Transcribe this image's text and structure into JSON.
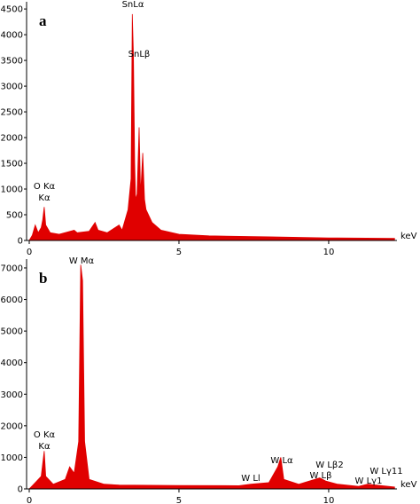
{
  "chart_data": [
    {
      "type": "area",
      "panel_label": "a",
      "x_label": "keV",
      "color": "#e00000",
      "xlim": [
        0,
        12.28
      ],
      "ylim": [
        0,
        4640
      ],
      "xticks": [
        0,
        5,
        10
      ],
      "yticks": [
        0,
        500,
        1000,
        1500,
        2000,
        2500,
        3000,
        3500,
        4000,
        4500
      ],
      "annotations": [
        "SnLα",
        "SnLβ",
        "O Kα",
        "Kα"
      ],
      "x": [
        0,
        0.1,
        0.2,
        0.3,
        0.4,
        0.45,
        0.5,
        0.55,
        0.7,
        1.0,
        1.5,
        1.6,
        2.0,
        2.2,
        2.3,
        2.6,
        3.0,
        3.1,
        3.3,
        3.4,
        3.44,
        3.48,
        3.52,
        3.55,
        3.6,
        3.67,
        3.72,
        3.79,
        3.85,
        3.9,
        4.1,
        4.4,
        5,
        6,
        8,
        10,
        12.2
      ],
      "values": [
        0,
        100,
        300,
        150,
        250,
        400,
        650,
        300,
        150,
        120,
        200,
        150,
        180,
        350,
        200,
        150,
        300,
        200,
        600,
        1200,
        4400,
        3600,
        1500,
        800,
        900,
        2200,
        900,
        1700,
        800,
        600,
        350,
        200,
        120,
        90,
        70,
        50,
        40
      ]
    },
    {
      "type": "area",
      "panel_label": "b",
      "x_label": "keV",
      "color": "#e00000",
      "xlim": [
        0,
        12.28
      ],
      "ylim": [
        0,
        7280
      ],
      "xticks": [
        0,
        5,
        10
      ],
      "yticks": [
        0,
        1000,
        2000,
        3000,
        4000,
        5000,
        6000,
        7000
      ],
      "annotations": [
        "W Mα",
        "O Kα",
        "Kα",
        "W Ll",
        "W Lα",
        "W Lβ2",
        "W Lβ",
        "W Lγ1",
        "W Lγ11"
      ],
      "x": [
        0,
        0.2,
        0.4,
        0.5,
        0.55,
        0.8,
        1.2,
        1.35,
        1.5,
        1.65,
        1.72,
        1.78,
        1.85,
        2.0,
        2.5,
        3,
        5,
        7,
        7.4,
        8.0,
        8.3,
        8.4,
        8.5,
        9,
        9.7,
        9.9,
        10.3,
        11,
        11.3,
        12.2
      ],
      "values": [
        0,
        200,
        400,
        1200,
        400,
        150,
        300,
        700,
        500,
        1500,
        7100,
        6600,
        1500,
        300,
        150,
        120,
        110,
        100,
        150,
        200,
        700,
        1000,
        300,
        150,
        350,
        250,
        150,
        80,
        150,
        60
      ]
    }
  ]
}
